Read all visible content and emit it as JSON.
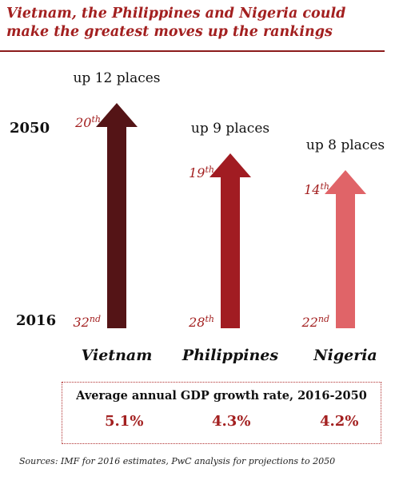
{
  "title": "Vietnam, the Philippines and Nigeria could make the greatest moves up the rankings",
  "year_top": "2050",
  "year_bottom": "2016",
  "chart_data": {
    "type": "bar",
    "title": "Vietnam, the Philippines and Nigeria could make the greatest moves up the rankings",
    "categories": [
      "Vietnam",
      "Philippines",
      "Nigeria"
    ],
    "series": [
      {
        "name": "2016",
        "values": [
          32,
          28,
          22
        ]
      },
      {
        "name": "2050",
        "values": [
          20,
          19,
          14
        ]
      }
    ],
    "rank_labels_2016": [
      [
        "32",
        "nd"
      ],
      [
        "28",
        "th"
      ],
      [
        "22",
        "nd"
      ]
    ],
    "rank_labels_2050": [
      [
        "20",
        "th"
      ],
      [
        "19",
        "th"
      ],
      [
        "14",
        "th"
      ]
    ],
    "annotations": [
      "up 12 places",
      "up 9 places",
      "up 8 places"
    ],
    "colors": [
      "#541416",
      "#a11c22",
      "#e06468"
    ]
  },
  "growth_box": {
    "title": "Average annual GDP growth rate, 2016-2050",
    "rates": [
      "5.1%",
      "4.3%",
      "4.2%"
    ]
  },
  "source": "Sources: IMF for 2016 estimates, PwC analysis for projections to 2050",
  "colors": {
    "accent": "#a32020",
    "rule": "#8c1b1b"
  }
}
